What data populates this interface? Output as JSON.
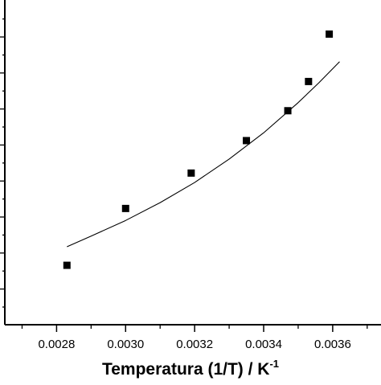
{
  "chart_data": {
    "type": "scatter",
    "title": "",
    "xlabel": "Temperatura (1/T) / K",
    "xlabel_superscript": "-1",
    "ylabel": "",
    "xlim": [
      0.00265,
      0.00374
    ],
    "ylim": [
      0,
      1
    ],
    "grid": false,
    "x_ticks": [
      "0.0028",
      "0.0030",
      "0.0032",
      "0.0034",
      "0.0036"
    ],
    "x_tick_values": [
      0.0028,
      0.003,
      0.0032,
      0.0034,
      0.0036
    ],
    "y_tick_count": 18,
    "series": [
      {
        "kind": "points",
        "marker": "square",
        "color": "#000000",
        "x": [
          0.00283,
          0.003,
          0.00319,
          0.00335,
          0.00347,
          0.00353,
          0.00359
        ],
        "y": [
          0.183,
          0.358,
          0.467,
          0.567,
          0.659,
          0.749,
          0.895
        ]
      },
      {
        "kind": "fit-line",
        "color": "#000000",
        "x": [
          0.00283,
          0.0029,
          0.003,
          0.0031,
          0.0032,
          0.0033,
          0.0034,
          0.0035,
          0.00356,
          0.00362
        ],
        "y": [
          0.24,
          0.273,
          0.321,
          0.376,
          0.438,
          0.51,
          0.591,
          0.684,
          0.745,
          0.81
        ]
      }
    ]
  }
}
